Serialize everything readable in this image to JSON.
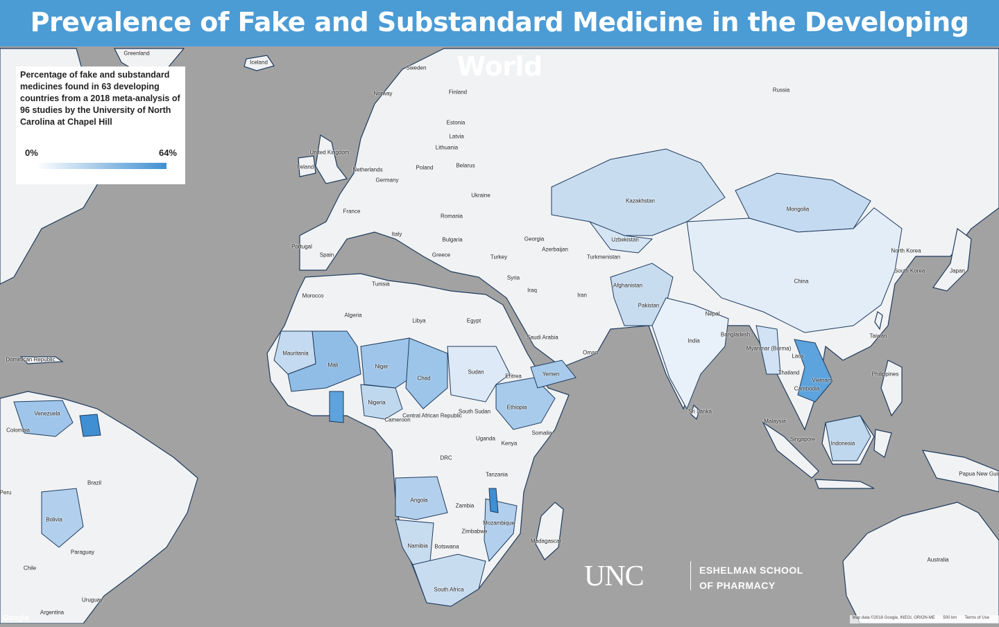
{
  "title": "Prevalence of Fake and Substandard Medicine in the Developing World",
  "legend": {
    "title": "Percentage of fake and substandard medicines found in 63 developing countries from a 2018 meta-analysis of 96 studies by the University of North Carolina at Chapel Hill",
    "min_label": "0%",
    "max_label": "64%",
    "min_value": 0,
    "max_value": 64,
    "color_low": "#ffffff",
    "color_high": "#3f8fd2"
  },
  "colors": {
    "ocean": "#a2a2a2",
    "land": "#f1f2f4",
    "border": "#1d3a5c",
    "title_bar": "#4b9bd5"
  },
  "labels": [
    "Greenland",
    "Iceland",
    "Sweden",
    "Norway",
    "Finland",
    "Russia",
    "Estonia",
    "Latvia",
    "Lithuania",
    "Belarus",
    "United Kingdom",
    "Ireland",
    "Poland",
    "Germany",
    "Netherlands",
    "Ukraine",
    "France",
    "Romania",
    "Italy",
    "Spain",
    "Portugal",
    "Bulgaria",
    "Greece",
    "Turkey",
    "Georgia",
    "Azerbaijan",
    "Kazakhstan",
    "Uzbekistan",
    "Turkmenistan",
    "Mongolia",
    "China",
    "Iran",
    "Iraq",
    "Syria",
    "Afghanistan",
    "Pakistan",
    "India",
    "Saudi Arabia",
    "Yemen",
    "Oman",
    "Egypt",
    "Libya",
    "Algeria",
    "Morocco",
    "Tunisia",
    "Mauritania",
    "Mali",
    "Niger",
    "Chad",
    "Sudan",
    "South Sudan",
    "Eritrea",
    "Ethiopia",
    "Somalia",
    "Nigeria",
    "Cameroon",
    "Central African Republic",
    "DRC",
    "Uganda",
    "Kenya",
    "Tanzania",
    "Angola",
    "Zambia",
    "Zimbabwe",
    "Mozambique",
    "Namibia",
    "Botswana",
    "South Africa",
    "Madagascar",
    "Myanmar (Burma)",
    "Thailand",
    "Cambodia",
    "Vietnam",
    "Laos",
    "Bangladesh",
    "Nepal",
    "Sri Lanka",
    "Malaysia",
    "Singapore",
    "Indonesia",
    "Philippines",
    "North Korea",
    "South Korea",
    "Japan",
    "Taiwan",
    "Papua New Guinea",
    "Australia",
    "Venezuela",
    "Colombia",
    "Brazil",
    "Peru",
    "Bolivia",
    "Paraguay",
    "Chile",
    "Argentina",
    "Uruguay",
    "Dominican Republic"
  ],
  "logo": {
    "mark": "UNC",
    "school_line1": "ESHELMAN SCHOOL",
    "school_line2": "OF PHARMACY"
  },
  "attribution": {
    "map_data": "Map data ©2018 Google, INEGI, ORION-ME",
    "scale": "500 km",
    "terms": "Terms of Use",
    "google": "Google"
  }
}
